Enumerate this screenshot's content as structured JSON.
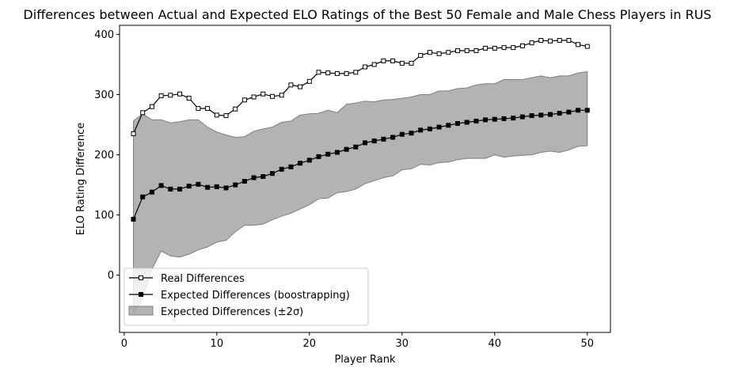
{
  "chart_data": {
    "type": "line",
    "title": "Differences between Actual and Expected ELO Ratings of the Best 50 Female and Male Chess Players in RUS",
    "xlabel": "Player Rank",
    "ylabel": "ELO Rating Difference",
    "xlim": [
      -0.5,
      52.5
    ],
    "ylim": [
      -95,
      415
    ],
    "xticks": [
      0,
      10,
      20,
      30,
      40,
      50
    ],
    "yticks": [
      0,
      100,
      200,
      300,
      400
    ],
    "grid": false,
    "legend_position": "lower-left",
    "x": [
      1,
      2,
      3,
      4,
      5,
      6,
      7,
      8,
      9,
      10,
      11,
      12,
      13,
      14,
      15,
      16,
      17,
      18,
      19,
      20,
      21,
      22,
      23,
      24,
      25,
      26,
      27,
      28,
      29,
      30,
      31,
      32,
      33,
      34,
      35,
      36,
      37,
      38,
      39,
      40,
      41,
      42,
      43,
      44,
      45,
      46,
      47,
      48,
      49,
      50
    ],
    "series": [
      {
        "name": "Real Differences",
        "marker": "open-square",
        "color": "#000000",
        "values": [
          235,
          270,
          280,
          298,
          299,
          301,
          294,
          277,
          277,
          266,
          265,
          276,
          291,
          296,
          301,
          297,
          299,
          316,
          313,
          322,
          337,
          336,
          335,
          335,
          337,
          346,
          350,
          356,
          356,
          352,
          352,
          365,
          370,
          368,
          370,
          373,
          373,
          373,
          377,
          377,
          378,
          378,
          381,
          386,
          390,
          389,
          390,
          390,
          383,
          380
        ]
      },
      {
        "name": "Expected Differences (boostrapping)",
        "marker": "filled-square",
        "color": "#000000",
        "values": [
          93,
          130,
          138,
          149,
          143,
          143,
          148,
          151,
          146,
          147,
          145,
          150,
          156,
          162,
          164,
          169,
          176,
          180,
          186,
          191,
          197,
          201,
          204,
          209,
          213,
          220,
          223,
          226,
          229,
          234,
          236,
          241,
          243,
          246,
          249,
          252,
          254,
          256,
          258,
          259,
          260,
          261,
          263,
          265,
          266,
          267,
          269,
          271,
          274,
          274
        ]
      }
    ],
    "band": {
      "name": "Expected Differences (±2σ)",
      "color": "#808080",
      "lower": [
        -65,
        -40,
        10,
        40,
        32,
        30,
        35,
        42,
        47,
        55,
        58,
        72,
        83,
        83,
        85,
        92,
        98,
        103,
        110,
        117,
        127,
        128,
        137,
        139,
        143,
        152,
        157,
        162,
        165,
        175,
        177,
        184,
        183,
        187,
        188,
        192,
        194,
        194,
        194,
        200,
        196,
        198,
        199,
        200,
        204,
        206,
        204,
        208,
        214,
        215
      ],
      "upper": [
        256,
        268,
        258,
        258,
        253,
        255,
        258,
        258,
        246,
        238,
        233,
        229,
        230,
        239,
        243,
        246,
        254,
        256,
        266,
        268,
        269,
        274,
        270,
        284,
        286,
        289,
        288,
        291,
        292,
        294,
        296,
        300,
        300,
        306,
        306,
        310,
        311,
        316,
        318,
        318,
        325,
        325,
        325,
        328,
        331,
        328,
        331,
        331,
        336,
        338
      ]
    }
  }
}
